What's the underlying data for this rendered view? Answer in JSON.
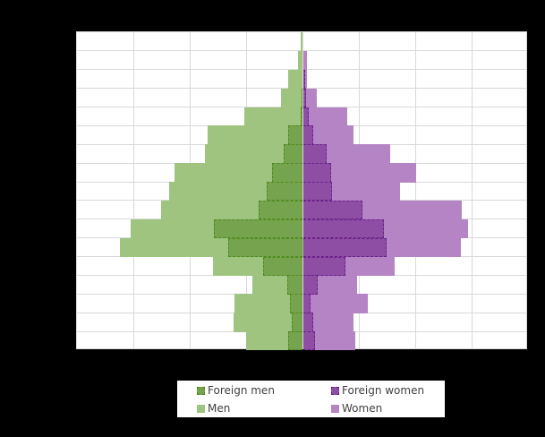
{
  "chart_data": {
    "type": "bar",
    "subtype": "population-pyramid",
    "title": "",
    "xlabel": "",
    "ylabel": "",
    "notes": "Axis tick labels not visible (rendered black on black). Values expressed in gridline units (1 unit = one vertical gridline interval). Rows ordered top (oldest) to bottom (youngest).",
    "grid": true,
    "xlim": [
      -4,
      4
    ],
    "legend_position": "bottom",
    "row_count": 17,
    "series": [
      {
        "name": "Men",
        "side": "left",
        "color": "#9fc480",
        "values": [
          0.04,
          0.09,
          0.26,
          0.39,
          1.04,
          1.69,
          1.74,
          2.28,
          2.37,
          2.52,
          3.06,
          3.25,
          1.6,
          0.9,
          1.21,
          1.23,
          1.01
        ]
      },
      {
        "name": "Women",
        "side": "right",
        "color": "#b584c4",
        "values": [
          0.0,
          0.07,
          0.07,
          0.25,
          0.79,
          0.9,
          1.55,
          2.01,
          1.72,
          2.82,
          2.93,
          2.8,
          1.63,
          0.96,
          1.15,
          0.9,
          0.93
        ]
      },
      {
        "name": "Foreign men",
        "side": "left",
        "color": "#76a34d",
        "border": "dashed",
        "values": [
          0.0,
          0.0,
          0.0,
          0.02,
          0.04,
          0.26,
          0.34,
          0.55,
          0.64,
          0.79,
          1.58,
          1.33,
          0.71,
          0.28,
          0.23,
          0.2,
          0.26
        ]
      },
      {
        "name": "Foreign women",
        "side": "right",
        "color": "#8e4ea4",
        "border": "dashed",
        "values": [
          0.0,
          0.0,
          0.04,
          0.06,
          0.1,
          0.18,
          0.42,
          0.5,
          0.52,
          1.06,
          1.44,
          1.48,
          0.75,
          0.26,
          0.13,
          0.18,
          0.21
        ]
      }
    ]
  },
  "legend": {
    "items": [
      {
        "label": "Foreign men",
        "swatch": "sw-fmen"
      },
      {
        "label": "Foreign women",
        "swatch": "sw-fwomen"
      },
      {
        "label": "Men",
        "swatch": "sw-men"
      },
      {
        "label": "Women",
        "swatch": "sw-women"
      }
    ]
  }
}
